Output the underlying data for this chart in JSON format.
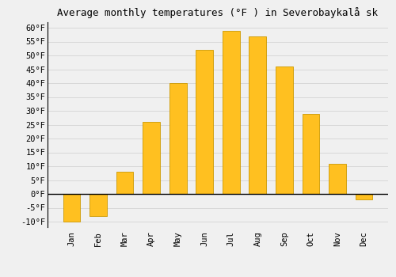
{
  "title": "Average monthly temperatures (°F ) in Severobaykalå sk",
  "months": [
    "Jan",
    "Feb",
    "Mar",
    "Apr",
    "May",
    "Jun",
    "Jul",
    "Aug",
    "Sep",
    "Oct",
    "Nov",
    "Dec"
  ],
  "values": [
    -10,
    -8,
    8,
    26,
    40,
    52,
    59,
    57,
    46,
    29,
    11,
    -2
  ],
  "bar_color": "#FFC020",
  "bar_edge_color": "#CC9900",
  "background_color": "#f0f0f0",
  "ylim": [
    -12,
    62
  ],
  "yticks": [
    -10,
    -5,
    0,
    5,
    10,
    15,
    20,
    25,
    30,
    35,
    40,
    45,
    50,
    55,
    60
  ],
  "ytick_labels": [
    "-10°F",
    "-5°F",
    "0°F",
    "5°F",
    "10°F",
    "15°F",
    "20°F",
    "25°F",
    "30°F",
    "35°F",
    "40°F",
    "45°F",
    "50°F",
    "55°F",
    "60°F"
  ],
  "title_fontsize": 9,
  "tick_fontsize": 7.5,
  "grid_color": "#d8d8d8",
  "zero_line_color": "#000000"
}
